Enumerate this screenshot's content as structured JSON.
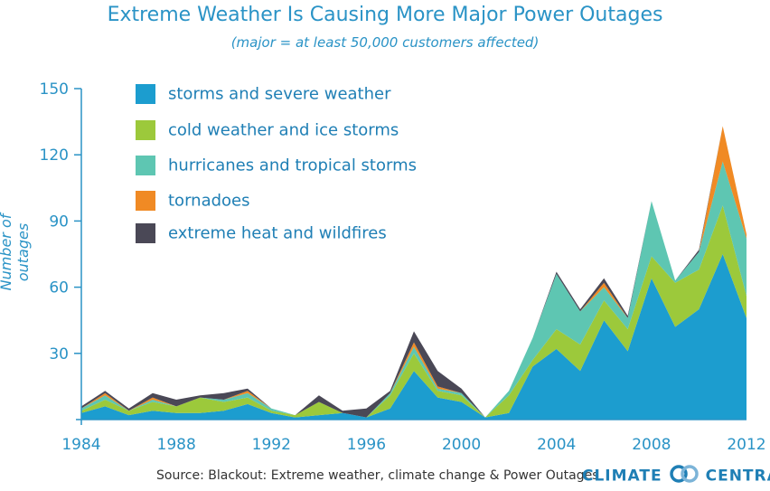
{
  "header": {
    "title": "Extreme Weather Is Causing More Major Power Outages",
    "subtitle": "(major = at least 50,000 customers affected)"
  },
  "footer": {
    "source": "Source: Blackout: Extreme weather, climate change & Power Outages",
    "logo_left": "CLIMATE",
    "logo_right": "CENTRAL"
  },
  "chart_data": {
    "type": "area",
    "stacked": true,
    "ylabel": "Number of outages",
    "xlabel": "",
    "ylim": [
      0,
      150
    ],
    "xlim": [
      1984,
      2012
    ],
    "yticks": [
      30,
      60,
      90,
      120,
      150
    ],
    "xticks": [
      1984,
      1988,
      1992,
      1996,
      2000,
      2004,
      2008,
      2012
    ],
    "legend_position": "top-left",
    "x": [
      1984,
      1985,
      1986,
      1987,
      1988,
      1989,
      1990,
      1991,
      1992,
      1993,
      1994,
      1995,
      1996,
      1997,
      1998,
      1999,
      2000,
      2001,
      2002,
      2003,
      2004,
      2005,
      2006,
      2007,
      2008,
      2009,
      2010,
      2011,
      2012
    ],
    "series": [
      {
        "name": "storms and severe weather",
        "color": "#1c9dcf",
        "values": [
          3,
          6,
          2,
          4,
          3,
          3,
          4,
          7,
          3,
          1,
          2,
          3,
          1,
          5,
          22,
          10,
          8,
          1,
          3,
          24,
          32,
          22,
          45,
          31,
          64,
          42,
          50,
          75,
          46
        ]
      },
      {
        "name": "cold weather and ice storms",
        "color": "#9cc93b",
        "values": [
          1,
          3,
          2,
          4,
          3,
          7,
          4,
          3,
          1,
          1,
          6,
          0,
          0,
          6,
          8,
          3,
          3,
          0,
          8,
          3,
          9,
          12,
          9,
          10,
          10,
          20,
          18,
          22,
          10
        ]
      },
      {
        "name": "hurricanes and tropical storms",
        "color": "#5ec6b2",
        "values": [
          1,
          2,
          0,
          1,
          0,
          0,
          1,
          2,
          1,
          0,
          0,
          0,
          0,
          1,
          3,
          1,
          1,
          0,
          2,
          10,
          25,
          15,
          6,
          5,
          25,
          1,
          8,
          20,
          26
        ]
      },
      {
        "name": "tornadoes",
        "color": "#f08a24",
        "values": [
          0,
          1,
          0,
          1,
          0,
          0,
          0,
          1,
          0,
          0,
          0,
          0,
          0,
          0,
          2,
          1,
          0,
          0,
          0,
          0,
          0,
          0,
          2,
          0,
          0,
          0,
          0,
          16,
          2
        ]
      },
      {
        "name": "extreme heat and wildfires",
        "color": "#4a4856",
        "values": [
          1,
          1,
          1,
          2,
          3,
          1,
          3,
          1,
          0,
          0,
          3,
          1,
          4,
          1,
          5,
          7,
          2,
          0,
          0,
          0,
          1,
          1,
          2,
          1,
          0,
          0,
          1,
          0,
          0
        ]
      }
    ]
  }
}
